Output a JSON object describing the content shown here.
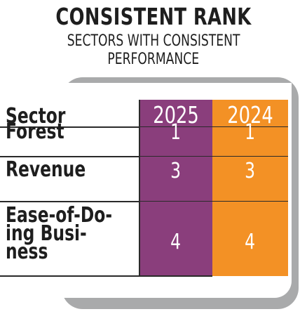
{
  "title": "CONSISTENT RANK",
  "subtitle_line1": "SECTORS WITH CONSISTENT",
  "subtitle_line2": "PERFORMANCE",
  "colors": {
    "col_2025": "#8a3e7c",
    "col_2024": "#f39125",
    "shadow": "#a9aaab"
  },
  "chart_data": {
    "type": "table",
    "columns": [
      "Sector",
      "2025",
      "2024"
    ],
    "rows": [
      {
        "sector_lines": [
          "Forest"
        ],
        "rank_2025": "1",
        "rank_2024": "1"
      },
      {
        "sector_lines": [
          "Revenue"
        ],
        "rank_2025": "3",
        "rank_2024": "3"
      },
      {
        "sector_lines": [
          "Ease-of-Do-",
          "ing Busi-",
          "ness"
        ],
        "rank_2025": "4",
        "rank_2024": "4"
      }
    ]
  }
}
